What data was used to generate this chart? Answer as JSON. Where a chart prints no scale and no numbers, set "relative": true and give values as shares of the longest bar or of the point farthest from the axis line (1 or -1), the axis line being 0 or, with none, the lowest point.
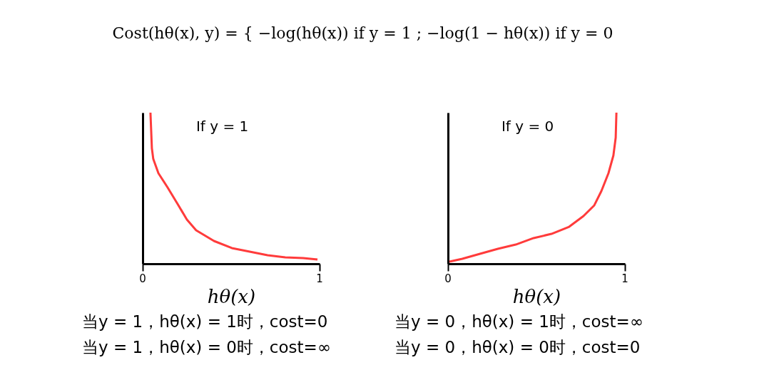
{
  "chart_data": [
    {
      "type": "line",
      "title": "Cost(hθ(x), y) = { −log(hθ(x)) if y = 1 ; −log(1 − hθ(x)) if y = 0",
      "xlabel": "hθ(x)",
      "xlim": [
        0,
        1
      ],
      "xticks": [
        0,
        1
      ],
      "relative": true,
      "grid": false,
      "series": [
        {
          "color": "#ff3b3b",
          "x": [
            0.044,
            0.052,
            0.06,
            0.089,
            0.141,
            0.202,
            0.25,
            0.302,
            0.403,
            0.504,
            0.605,
            0.706,
            0.806,
            0.907,
            0.988
          ],
          "values": [
            1.0,
            0.764,
            0.693,
            0.599,
            0.505,
            0.387,
            0.292,
            0.222,
            0.151,
            0.104,
            0.08,
            0.057,
            0.042,
            0.038,
            0.028
          ]
        }
      ],
      "annotations": [
        "If y = 1",
        "当y = 1，hθ(x) = 1时，cost=0",
        "当y = 1，hθ(x) = 0时，cost=∞"
      ]
    },
    {
      "type": "line",
      "xlabel": "hθ(x)",
      "xlim": [
        0,
        1
      ],
      "xticks": [
        0,
        1
      ],
      "relative": true,
      "grid": false,
      "series": [
        {
          "color": "#ff3b3b",
          "x": [
            0.008,
            0.081,
            0.181,
            0.282,
            0.383,
            0.484,
            0.585,
            0.685,
            0.766,
            0.827,
            0.867,
            0.907,
            0.935,
            0.948,
            0.952
          ],
          "values": [
            0.014,
            0.033,
            0.066,
            0.099,
            0.127,
            0.17,
            0.198,
            0.245,
            0.316,
            0.387,
            0.481,
            0.599,
            0.717,
            0.835,
            1.0
          ]
        }
      ],
      "annotations": [
        "If y = 0",
        "当y = 0，hθ(x) = 1时，cost=∞",
        "当y = 0，hθ(x) = 0时，cost=0"
      ]
    }
  ]
}
